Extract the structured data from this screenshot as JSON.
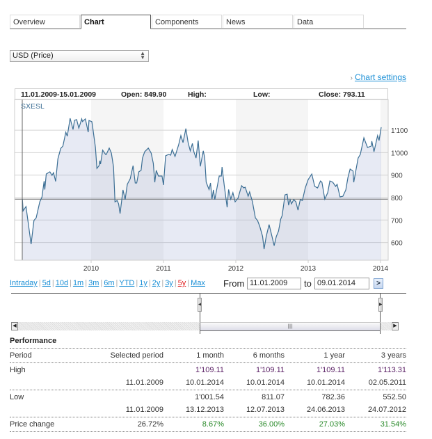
{
  "tabs": [
    {
      "label": "Overview",
      "active": false
    },
    {
      "label": "Chart",
      "active": true
    },
    {
      "label": "Components",
      "active": false
    },
    {
      "label": "News",
      "active": false
    },
    {
      "label": "Data",
      "active": false
    }
  ],
  "currency_select": {
    "value": "USD (Price)"
  },
  "chart_settings_label": "Chart settings",
  "chart_header": {
    "range": "11.01.2009-15.01.2009",
    "open": "Open: 849.90",
    "high": "High:",
    "low": "Low:",
    "close": "Close: 793.11"
  },
  "colors": {
    "line": "#3b6e94",
    "fill": "#e6e9f3",
    "band": "#f5f5f5",
    "accent_link": "#1a8fd6",
    "selected_range": "#e02020"
  },
  "chart_data": {
    "type": "area",
    "series_name": "SXESL",
    "reference_value": 793.11,
    "ylim": [
      520,
      1220
    ],
    "xlim": [
      2008.94,
      2014.12
    ],
    "yticks": [
      {
        "value": 600,
        "label": "600"
      },
      {
        "value": 700,
        "label": "700"
      },
      {
        "value": 800,
        "label": "800"
      },
      {
        "value": 900,
        "label": "900"
      },
      {
        "value": 1000,
        "label": "1'000"
      },
      {
        "value": 1100,
        "label": "1'100"
      }
    ],
    "xticks": [
      {
        "value": 2010,
        "label": "2010"
      },
      {
        "value": 2011,
        "label": "2011"
      },
      {
        "value": 2012,
        "label": "2012"
      },
      {
        "value": 2013,
        "label": "2013"
      },
      {
        "value": 2014,
        "label": "2014"
      }
    ],
    "x": [
      2009.05,
      2009.06,
      2009.1,
      2009.13,
      2009.17,
      2009.21,
      2009.24,
      2009.29,
      2009.32,
      2009.35,
      2009.36,
      2009.38,
      2009.43,
      2009.46,
      2009.48,
      2009.51,
      2009.54,
      2009.58,
      2009.61,
      2009.65,
      2009.67,
      2009.71,
      2009.75,
      2009.77,
      2009.8,
      2009.83,
      2009.87,
      2009.88,
      2009.92,
      2009.96,
      2009.97,
      2010.01,
      2010.02,
      2010.06,
      2010.08,
      2010.11,
      2010.12,
      2010.13,
      2010.16,
      2010.2,
      2010.21,
      2010.25,
      2010.28,
      2010.31,
      2010.33,
      2010.36,
      2010.38,
      2010.4,
      2010.44,
      2010.47,
      2010.5,
      2010.54,
      2010.58,
      2010.61,
      2010.63,
      2010.66,
      2010.69,
      2010.71,
      2010.74,
      2010.79,
      2010.83,
      2010.86,
      2010.88,
      2010.9,
      2010.93,
      2010.98,
      2011.0,
      2011.03,
      2011.07,
      2011.1,
      2011.12,
      2011.16,
      2011.21,
      2011.24,
      2011.27,
      2011.31,
      2011.34,
      2011.37,
      2011.4,
      2011.42,
      2011.45,
      2011.48,
      2011.51,
      2011.55,
      2011.57,
      2011.59,
      2011.63,
      2011.65,
      2011.67,
      2011.69,
      2011.71,
      2011.77,
      2011.8,
      2011.81,
      2011.84,
      2011.88,
      2011.9,
      2011.93,
      2011.96,
      2011.99,
      2012.03,
      2012.08,
      2012.11,
      2012.13,
      2012.17,
      2012.19,
      2012.23,
      2012.27,
      2012.3,
      2012.33,
      2012.37,
      2012.39,
      2012.42,
      2012.46,
      2012.5,
      2012.53,
      2012.56,
      2012.59,
      2012.62,
      2012.64,
      2012.68,
      2012.71,
      2012.73,
      2012.75,
      2012.77,
      2012.8,
      2012.83,
      2012.86,
      2012.89,
      2012.92,
      2012.96,
      2013.0,
      2013.05,
      2013.09,
      2013.13,
      2013.17,
      2013.19,
      2013.23,
      2013.27,
      2013.3,
      2013.34,
      2013.38,
      2013.4,
      2013.44,
      2013.48,
      2013.52,
      2013.55,
      2013.58,
      2013.62,
      2013.63,
      2013.69,
      2013.72,
      2013.77,
      2013.82,
      2013.87,
      2013.88,
      2013.91,
      2013.96,
      2013.98,
      2014.01
    ],
    "values": [
      793,
      741,
      760,
      689,
      593,
      698,
      710,
      781,
      802,
      873,
      836,
      905,
      915,
      899,
      911,
      872,
      972,
      1019,
      1029,
      1091,
      1073,
      1153,
      1103,
      1144,
      1147,
      1109,
      1150,
      1138,
      1150,
      1091,
      1143,
      1138,
      1116,
      1023,
      930,
      942,
      964,
      949,
      1011,
      992,
      992,
      1020,
      998,
      936,
      781,
      787,
      772,
      729,
      834,
      791,
      859,
      884,
      942,
      865,
      865,
      915,
      921,
      976,
      1004,
      1020,
      998,
      952,
      868,
      921,
      896,
      896,
      856,
      986,
      992,
      989,
      1014,
      983,
      1035,
      1076,
      1045,
      1107,
      1045,
      1008,
      1041,
      1004,
      976,
      1054,
      939,
      1008,
      976,
      868,
      836,
      865,
      793,
      834,
      791,
      896,
      896,
      936,
      853,
      757,
      836,
      793,
      822,
      781,
      797,
      853,
      843,
      846,
      806,
      825,
      781,
      710,
      698,
      673,
      627,
      571,
      627,
      680,
      627,
      586,
      627,
      651,
      704,
      720,
      812,
      815,
      766,
      791,
      772,
      791,
      781,
      744,
      791,
      787,
      843,
      880,
      905,
      850,
      843,
      874,
      868,
      793,
      822,
      874,
      868,
      850,
      859,
      803,
      806,
      834,
      890,
      927,
      918,
      868,
      976,
      992,
      1066,
      1023,
      1029,
      1051,
      1004,
      1076,
      1054,
      1113
    ]
  },
  "range_links": [
    "Intraday",
    "5d",
    "10d",
    "1m",
    "3m",
    "6m",
    "YTD",
    "1y",
    "2y",
    "3y",
    "5y",
    "Max"
  ],
  "selected_range": "5y",
  "date_range": {
    "from_label": "From",
    "from_value": "11.01.2009",
    "to_label": "to",
    "to_value": "09.01.2014",
    "go_icon": "chevron-right"
  },
  "navigator": {
    "selection_start_fraction": 0.5,
    "selection_end_fraction": 0.96
  },
  "performance": {
    "title": "Performance",
    "headers": [
      "Period",
      "Selected period",
      "1 month",
      "6 months",
      "1 year",
      "3 years"
    ],
    "high": {
      "label": "High",
      "values": [
        "",
        "1'109.11",
        "1'109.11",
        "1'109.11",
        "1'113.31"
      ],
      "dates": [
        "11.01.2009",
        "10.01.2014",
        "10.01.2014",
        "10.01.2014",
        "02.05.2011"
      ]
    },
    "low": {
      "label": "Low",
      "values": [
        "",
        "1'001.54",
        "811.07",
        "782.36",
        "552.50"
      ],
      "dates": [
        "11.01.2009",
        "13.12.2013",
        "12.07.2013",
        "24.06.2013",
        "24.07.2012"
      ]
    },
    "price_change": {
      "label": "Price change",
      "values": [
        "26.72%",
        "8.67%",
        "36.00%",
        "27.03%",
        "31.54%"
      ]
    }
  }
}
